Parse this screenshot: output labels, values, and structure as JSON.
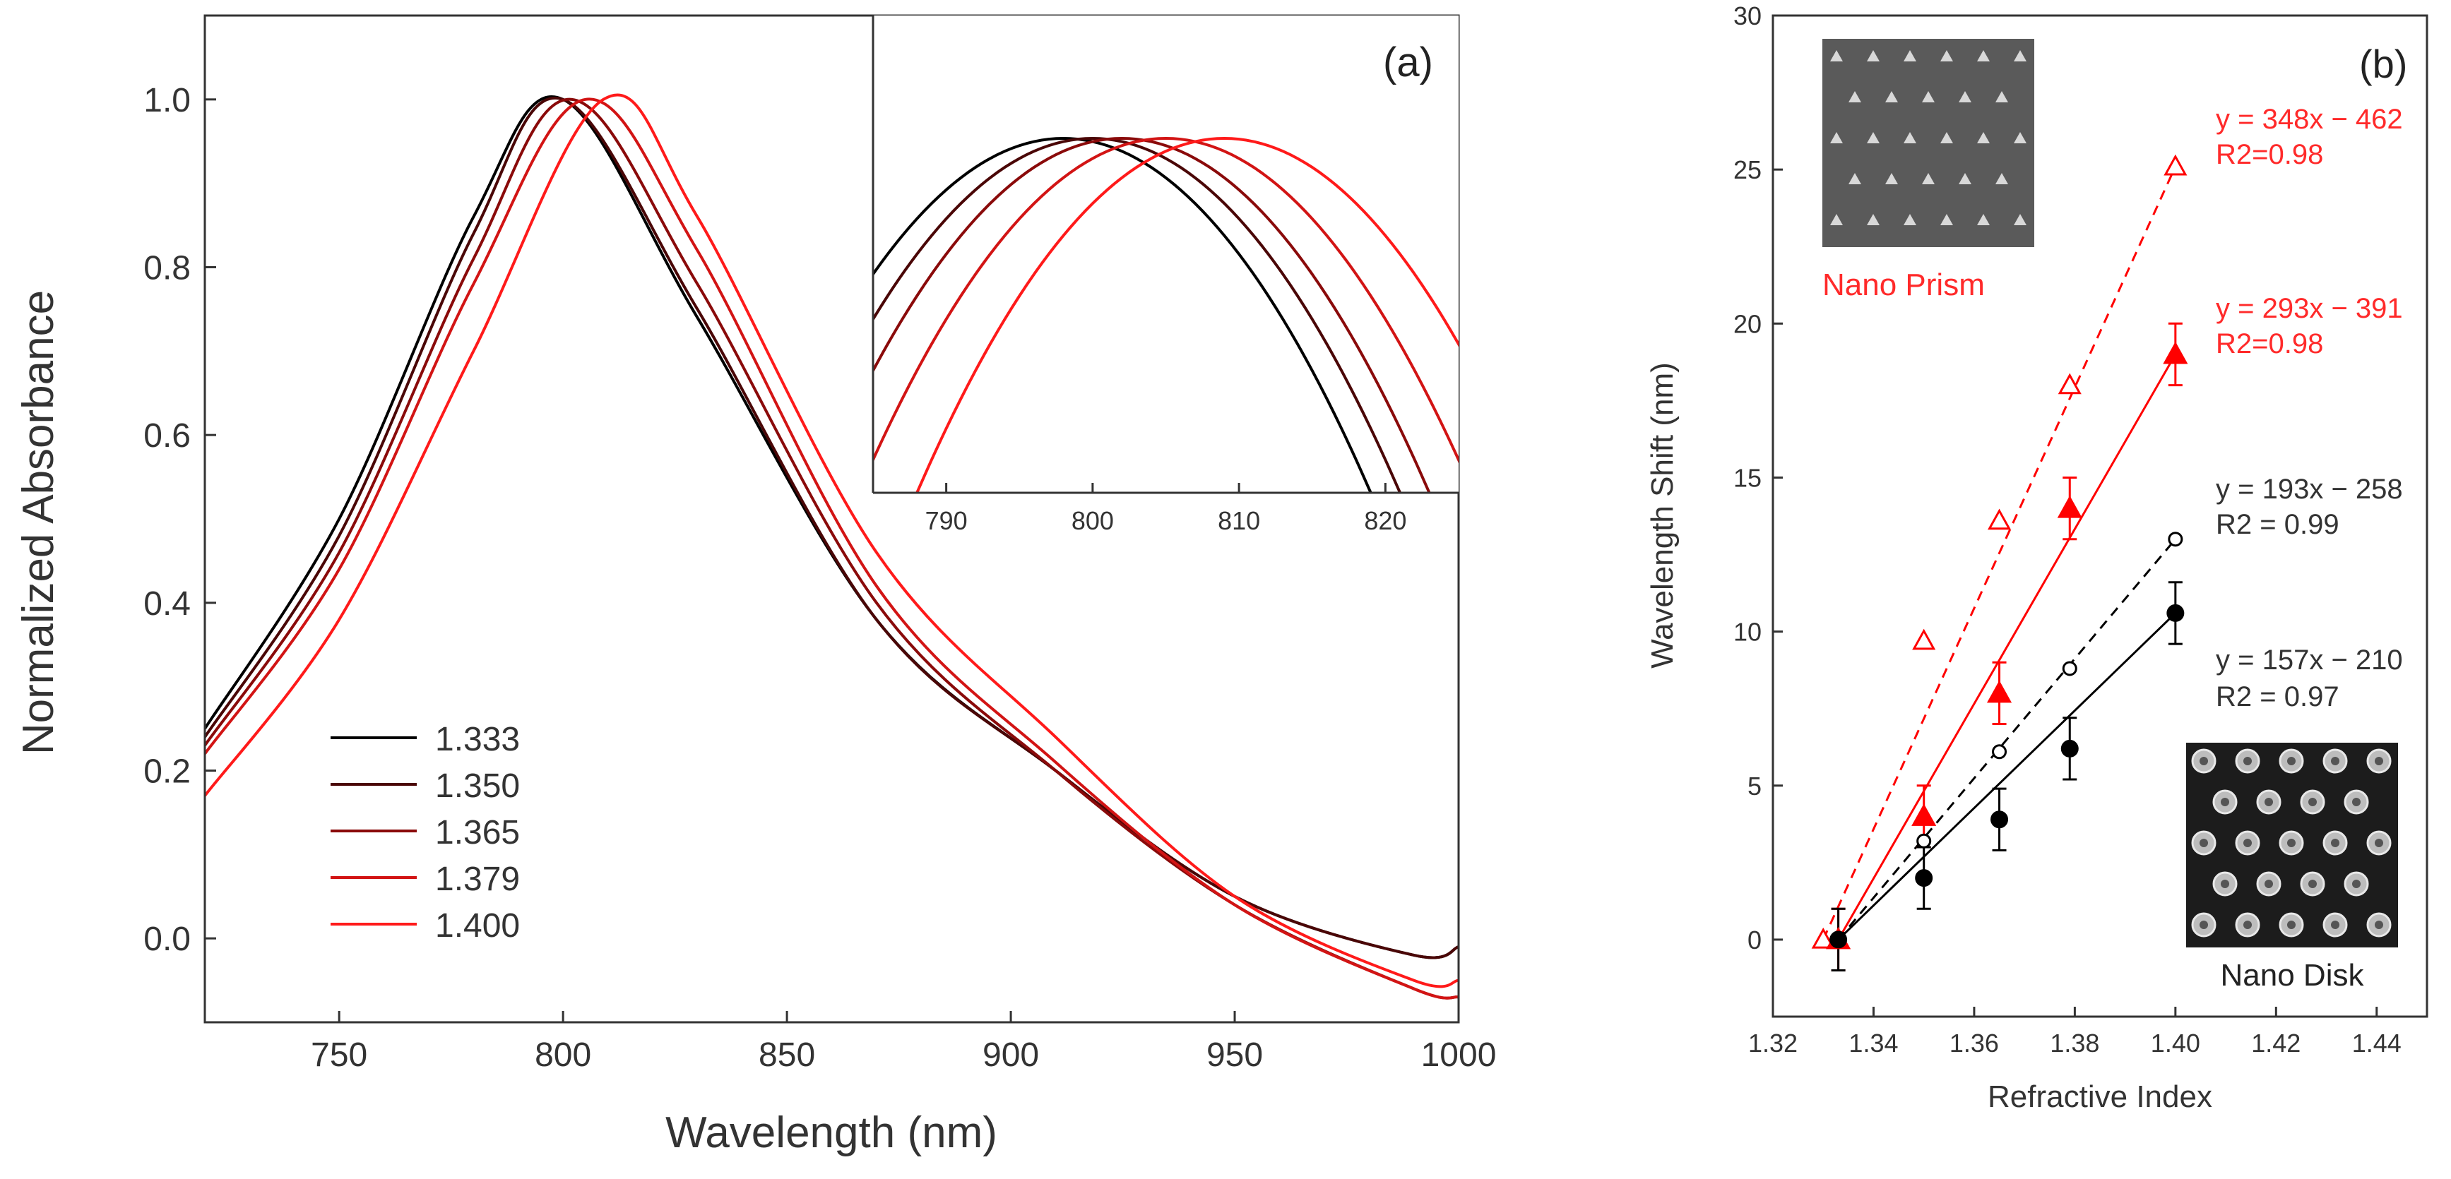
{
  "panel_a_label": "(a)",
  "panel_b_label": "(b)",
  "inset_b_prism_label": "Nano Prism",
  "inset_b_disk_label": "Nano Disk",
  "colors": {
    "series": [
      "#000000",
      "#4a0606",
      "#8a0a0a",
      "#d21414",
      "#ff1a1a"
    ],
    "prism": "#ff0000",
    "disk": "#000000"
  },
  "chart_data": [
    {
      "type": "line",
      "id": "absorbance",
      "title": "",
      "xlabel": "Wavelength (nm)",
      "ylabel": "Normalized Absorbance",
      "xlim": [
        720,
        1000
      ],
      "ylim": [
        -0.1,
        1.1
      ],
      "x_ticks": [
        "750",
        "800",
        "850",
        "900",
        "950",
        "1000"
      ],
      "y_ticks": [
        "0.0",
        "0.2",
        "0.4",
        "0.6",
        "0.8",
        "1.0"
      ],
      "legend_position": "bottom-left",
      "series": [
        {
          "name": "1.333",
          "peak": 798,
          "x": [
            720,
            750,
            780,
            800,
            830,
            870,
            910,
            950,
            990,
            1000
          ],
          "y": [
            0.25,
            0.5,
            0.86,
            1.0,
            0.74,
            0.38,
            0.2,
            0.05,
            -0.02,
            -0.01
          ]
        },
        {
          "name": "1.350",
          "peak": 800,
          "x": [
            720,
            750,
            780,
            800,
            830,
            870,
            910,
            950,
            990,
            1000
          ],
          "y": [
            0.24,
            0.48,
            0.84,
            1.0,
            0.75,
            0.38,
            0.2,
            0.05,
            -0.02,
            -0.01
          ]
        },
        {
          "name": "1.365",
          "peak": 802,
          "x": [
            720,
            750,
            780,
            802,
            830,
            870,
            910,
            950,
            990,
            1000
          ],
          "y": [
            0.23,
            0.46,
            0.81,
            1.0,
            0.78,
            0.4,
            0.2,
            0.04,
            -0.06,
            -0.07
          ]
        },
        {
          "name": "1.379",
          "peak": 805,
          "x": [
            720,
            750,
            780,
            805,
            830,
            870,
            910,
            950,
            990,
            1000
          ],
          "y": [
            0.22,
            0.44,
            0.78,
            1.0,
            0.82,
            0.42,
            0.21,
            0.04,
            -0.06,
            -0.07
          ]
        },
        {
          "name": "1.400",
          "peak": 809,
          "x": [
            720,
            750,
            780,
            809,
            830,
            870,
            910,
            950,
            990,
            1000
          ],
          "y": [
            0.17,
            0.38,
            0.7,
            1.0,
            0.86,
            0.46,
            0.24,
            0.05,
            -0.05,
            -0.05
          ]
        }
      ]
    },
    {
      "type": "line",
      "id": "absorbance-peak-inset",
      "xlabel": "",
      "ylabel": "",
      "xlim": [
        785,
        825
      ],
      "x_ticks": [
        "790",
        "800",
        "810",
        "820"
      ],
      "series_peaks_nm": [
        798,
        800,
        802,
        805,
        809
      ]
    },
    {
      "type": "scatter",
      "id": "sensitivity",
      "xlabel": "Refractive Index",
      "ylabel": "Wavelength Shift (nm)",
      "xlim": [
        1.32,
        1.45
      ],
      "ylim": [
        -2.5,
        30
      ],
      "x_ticks": [
        "1.32",
        "1.34",
        "1.36",
        "1.38",
        "1.40",
        "1.42",
        "1.44"
      ],
      "y_ticks": [
        "0",
        "5",
        "10",
        "15",
        "20",
        "25",
        "30"
      ],
      "series": [
        {
          "name": "Nano Prism (open)",
          "marker": "triangle-open",
          "color": "#ff0000",
          "x": [
            1.33,
            1.35,
            1.365,
            1.379,
            1.4
          ],
          "y": [
            0.0,
            9.7,
            13.6,
            18.0,
            25.1
          ],
          "fit": {
            "slope": 348,
            "intercept": -462,
            "line": "dashed",
            "equation": "y = 348x − 462",
            "r2": "R2=0.98"
          }
        },
        {
          "name": "Nano Prism (filled)",
          "marker": "triangle-filled",
          "color": "#ff0000",
          "x": [
            1.333,
            1.35,
            1.365,
            1.379,
            1.4
          ],
          "y": [
            0.0,
            4.0,
            8.0,
            14.0,
            19.0
          ],
          "err": [
            1.0,
            1.0,
            1.0,
            1.0,
            1.0
          ],
          "fit": {
            "slope": 293,
            "intercept": -391,
            "line": "solid",
            "equation": "y = 293x − 391",
            "r2": "R2=0.98"
          }
        },
        {
          "name": "Nano Disk (open)",
          "marker": "circle-open",
          "color": "#000000",
          "x": [
            1.333,
            1.35,
            1.365,
            1.379,
            1.4
          ],
          "y": [
            0.0,
            3.2,
            6.1,
            8.8,
            13.0
          ],
          "fit": {
            "slope": 193,
            "intercept": -258,
            "line": "dashed",
            "equation": "y = 193x − 258",
            "r2": "R2 = 0.99"
          }
        },
        {
          "name": "Nano Disk (filled)",
          "marker": "circle-filled",
          "color": "#000000",
          "x": [
            1.333,
            1.35,
            1.365,
            1.379,
            1.4
          ],
          "y": [
            0.0,
            2.0,
            3.9,
            6.2,
            10.6
          ],
          "err": [
            1.0,
            1.0,
            1.0,
            1.0,
            1.0
          ],
          "fit": {
            "slope": 157,
            "intercept": -210,
            "line": "solid",
            "equation": "y = 157x − 210",
            "r2": "R2 = 0.97"
          }
        }
      ]
    }
  ]
}
